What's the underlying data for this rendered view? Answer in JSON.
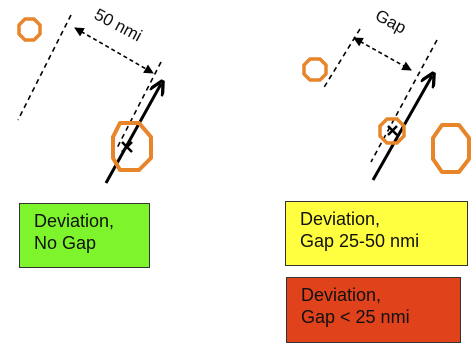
{
  "left_panel": {
    "distance_label": "50 nmi"
  },
  "right_panel": {
    "distance_label": "Gap"
  },
  "legend": {
    "no_gap": {
      "line1": "Deviation,",
      "line2": "No Gap",
      "color": "#7ef42c"
    },
    "gap_25_50": {
      "line1": "Deviation,",
      "line2": "Gap 25-50 nmi",
      "color": "#ffff40"
    },
    "gap_lt_25": {
      "line1": "Deviation,",
      "line2": "Gap < 25 nmi",
      "color": "#e0421c"
    }
  },
  "colors": {
    "weather_cell": "#e8852a",
    "track": "#000000"
  }
}
